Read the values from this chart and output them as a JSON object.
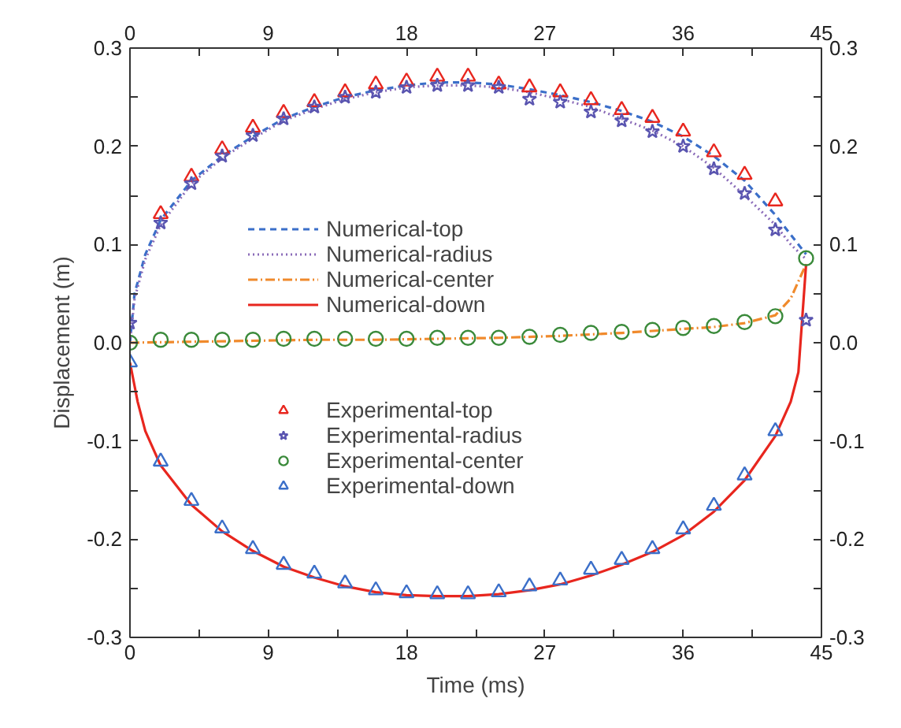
{
  "chart_data": {
    "type": "line",
    "xlabel": "Time (ms)",
    "ylabel": "Displacement (m)",
    "xlim": [
      0,
      45
    ],
    "xticks": [
      0,
      {
        "value": 4.5,
        "label": null
      },
      9,
      {
        "value": 13.5,
        "label": null
      },
      18,
      {
        "value": 22.5,
        "label": null
      },
      27,
      {
        "value": 31.5,
        "label": null
      },
      36,
      {
        "value": 40.5,
        "label": null
      },
      45
    ],
    "x2lim": [
      0,
      45
    ],
    "x2ticks": [
      0,
      {
        "value": 4.5,
        "label": null
      },
      9,
      {
        "value": 13.5,
        "label": null
      },
      18,
      {
        "value": 22.5,
        "label": null
      },
      27,
      {
        "value": 31.5,
        "label": null
      },
      36,
      {
        "value": 40.5,
        "label": null
      },
      45
    ],
    "ylim": [
      -0.3,
      0.3
    ],
    "yticks": [
      -0.3,
      {
        "value": -0.25,
        "label": null
      },
      -0.2,
      {
        "value": -0.15,
        "label": null
      },
      -0.1,
      {
        "value": -0.05,
        "label": null
      },
      {
        "value": 0,
        "label": "0.0"
      },
      {
        "value": 0.05,
        "label": null
      },
      0.1,
      {
        "value": 0.15,
        "label": null
      },
      0.2,
      {
        "value": 0.25,
        "label": null
      },
      0.3
    ],
    "y2lim": [
      -0.3,
      0.3
    ],
    "y2ticks": [
      -0.3,
      {
        "value": -0.25,
        "label": null
      },
      -0.2,
      {
        "value": -0.15,
        "label": null
      },
      -0.1,
      {
        "value": -0.05,
        "label": null
      },
      {
        "value": 0,
        "label": "0.0"
      },
      {
        "value": 0.05,
        "label": null
      },
      0.1,
      {
        "value": 0.15,
        "label": null
      },
      0.2,
      {
        "value": 0.25,
        "label": null
      },
      0.3
    ],
    "grid": false,
    "legend": "center",
    "series": [
      {
        "name": "Numerical-top",
        "line_style": "dashed",
        "color": "#3b6fc9",
        "x": [
          0,
          0.3,
          1,
          2,
          4,
          6,
          8,
          10,
          12,
          14,
          16,
          18,
          20,
          22,
          24,
          26,
          28,
          30,
          32,
          34,
          36,
          38,
          40,
          42,
          43,
          44
        ],
        "values": [
          0,
          0.05,
          0.09,
          0.125,
          0.165,
          0.19,
          0.21,
          0.228,
          0.24,
          0.25,
          0.257,
          0.262,
          0.265,
          0.265,
          0.263,
          0.258,
          0.252,
          0.245,
          0.236,
          0.225,
          0.21,
          0.19,
          0.165,
          0.13,
          0.11,
          0.09
        ]
      },
      {
        "name": "Numerical-radius",
        "line_style": "dotted",
        "color": "#8a6bb8",
        "x": [
          0,
          0.3,
          1,
          2,
          4,
          6,
          8,
          10,
          12,
          14,
          16,
          18,
          20,
          22,
          24,
          26,
          28,
          30,
          32,
          34,
          36,
          38,
          40,
          42,
          43,
          44
        ],
        "values": [
          0,
          0.045,
          0.085,
          0.12,
          0.162,
          0.188,
          0.208,
          0.226,
          0.238,
          0.248,
          0.255,
          0.26,
          0.262,
          0.262,
          0.26,
          0.255,
          0.248,
          0.24,
          0.228,
          0.216,
          0.2,
          0.178,
          0.15,
          0.12,
          0.1,
          0.085
        ]
      },
      {
        "name": "Numerical-center",
        "line_style": "dashdot",
        "color": "#f08a2c",
        "x": [
          0,
          4,
          8,
          12,
          16,
          20,
          24,
          28,
          32,
          36,
          38,
          40,
          42,
          43,
          44
        ],
        "values": [
          0,
          0.001,
          0.002,
          0.003,
          0.003,
          0.004,
          0.005,
          0.007,
          0.01,
          0.014,
          0.016,
          0.02,
          0.028,
          0.045,
          0.08
        ]
      },
      {
        "name": "Numerical-down",
        "line_style": "solid",
        "color": "#e8261e",
        "x": [
          0,
          0.5,
          1,
          2,
          4,
          6,
          8,
          10,
          12,
          14,
          16,
          18,
          20,
          22,
          24,
          26,
          28,
          30,
          32,
          34,
          36,
          38,
          40,
          42,
          43,
          43.5,
          44
        ],
        "values": [
          -0.02,
          -0.06,
          -0.09,
          -0.125,
          -0.165,
          -0.192,
          -0.212,
          -0.228,
          -0.239,
          -0.248,
          -0.254,
          -0.257,
          -0.258,
          -0.258,
          -0.256,
          -0.252,
          -0.246,
          -0.237,
          -0.226,
          -0.213,
          -0.196,
          -0.172,
          -0.14,
          -0.095,
          -0.06,
          -0.03,
          0.08
        ]
      },
      {
        "name": "Experimental-top",
        "type": "scatter",
        "marker": "triangle",
        "color": "#e8261e",
        "x": [
          2,
          4,
          6,
          8,
          10,
          12,
          14,
          16,
          18,
          20,
          22,
          24,
          26,
          28,
          30,
          32,
          34,
          36,
          38,
          40,
          42
        ],
        "values": [
          0.131,
          0.169,
          0.197,
          0.219,
          0.234,
          0.245,
          0.255,
          0.263,
          0.266,
          0.271,
          0.271,
          0.263,
          0.26,
          0.255,
          0.247,
          0.237,
          0.229,
          0.215,
          0.194,
          0.171,
          0.144
        ]
      },
      {
        "name": "Experimental-radius",
        "type": "scatter",
        "marker": "star",
        "color": "#5a55b0",
        "x": [
          0,
          2,
          4,
          6,
          8,
          10,
          12,
          14,
          16,
          18,
          20,
          22,
          24,
          26,
          28,
          30,
          32,
          34,
          36,
          38,
          40,
          42,
          44
        ],
        "values": [
          0.02,
          0.122,
          0.162,
          0.19,
          0.211,
          0.228,
          0.24,
          0.25,
          0.255,
          0.26,
          0.262,
          0.262,
          0.26,
          0.248,
          0.245,
          0.235,
          0.226,
          0.215,
          0.2,
          0.177,
          0.152,
          0.115,
          0.023
        ]
      },
      {
        "name": "Experimental-center",
        "type": "scatter",
        "marker": "circle",
        "color": "#3a8a3a",
        "x": [
          0,
          2,
          4,
          6,
          8,
          10,
          12,
          14,
          16,
          18,
          20,
          22,
          24,
          26,
          28,
          30,
          32,
          34,
          36,
          38,
          40,
          42,
          44
        ],
        "values": [
          0,
          0.003,
          0.003,
          0.003,
          0.003,
          0.004,
          0.004,
          0.004,
          0.004,
          0.004,
          0.005,
          0.005,
          0.005,
          0.006,
          0.008,
          0.01,
          0.011,
          0.013,
          0.015,
          0.017,
          0.021,
          0.027,
          0.086
        ]
      },
      {
        "name": "Experimental-down",
        "type": "scatter",
        "marker": "triangle",
        "color": "#3b6fc9",
        "x": [
          0,
          2,
          4,
          6,
          8,
          10,
          12,
          14,
          16,
          18,
          20,
          22,
          24,
          26,
          28,
          30,
          32,
          34,
          36,
          38,
          40,
          42
        ],
        "values": [
          -0.02,
          -0.121,
          -0.161,
          -0.189,
          -0.21,
          -0.226,
          -0.235,
          -0.245,
          -0.252,
          -0.255,
          -0.256,
          -0.256,
          -0.254,
          -0.248,
          -0.242,
          -0.231,
          -0.221,
          -0.21,
          -0.19,
          -0.166,
          -0.135,
          -0.09
        ]
      }
    ]
  }
}
